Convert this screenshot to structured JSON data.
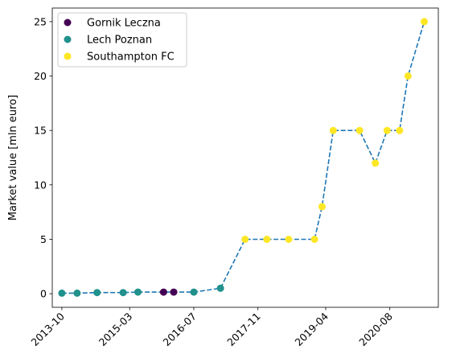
{
  "chart_data": {
    "type": "scatter",
    "title": "",
    "xlabel": "",
    "ylabel": "Market value [mln euro]",
    "xlim": [
      "2013-07-20",
      "2021-08-05"
    ],
    "ylim": [
      -1.25,
      26.25
    ],
    "x_ticks": [
      "2013-10",
      "2015-03",
      "2016-07",
      "2017-11",
      "2019-04",
      "2020-08"
    ],
    "y_ticks": [
      0,
      5,
      10,
      15,
      20,
      25
    ],
    "grid": false,
    "legend_position": "top-left",
    "line": {
      "style": "dashed",
      "color": "#1f77b4"
    },
    "series": [
      {
        "name": "Gornik Leczna",
        "color": "#440154",
        "points": [
          {
            "x": "2015-11-14",
            "y": 0.15
          },
          {
            "x": "2016-01-30",
            "y": 0.15
          }
        ]
      },
      {
        "name": "Lech Poznan",
        "color": "#21918c",
        "points": [
          {
            "x": "2013-10-01",
            "y": 0.05
          },
          {
            "x": "2014-01-25",
            "y": 0.05
          },
          {
            "x": "2014-06-26",
            "y": 0.1
          },
          {
            "x": "2015-01-10",
            "y": 0.1
          },
          {
            "x": "2015-05-03",
            "y": 0.15
          },
          {
            "x": "2016-07-01",
            "y": 0.15
          },
          {
            "x": "2017-01-20",
            "y": 0.5
          }
        ]
      },
      {
        "name": "Southampton FC",
        "color": "#fde725",
        "points": [
          {
            "x": "2017-07-26",
            "y": 5
          },
          {
            "x": "2018-01-08",
            "y": 5
          },
          {
            "x": "2018-06-23",
            "y": 5
          },
          {
            "x": "2019-01-06",
            "y": 5
          },
          {
            "x": "2019-03-04",
            "y": 8
          },
          {
            "x": "2019-05-28",
            "y": 15
          },
          {
            "x": "2019-12-15",
            "y": 15
          },
          {
            "x": "2020-04-13",
            "y": 12
          },
          {
            "x": "2020-07-11",
            "y": 15
          },
          {
            "x": "2020-10-14",
            "y": 15
          },
          {
            "x": "2020-12-17",
            "y": 20
          },
          {
            "x": "2021-04-20",
            "y": 25
          }
        ]
      }
    ]
  }
}
